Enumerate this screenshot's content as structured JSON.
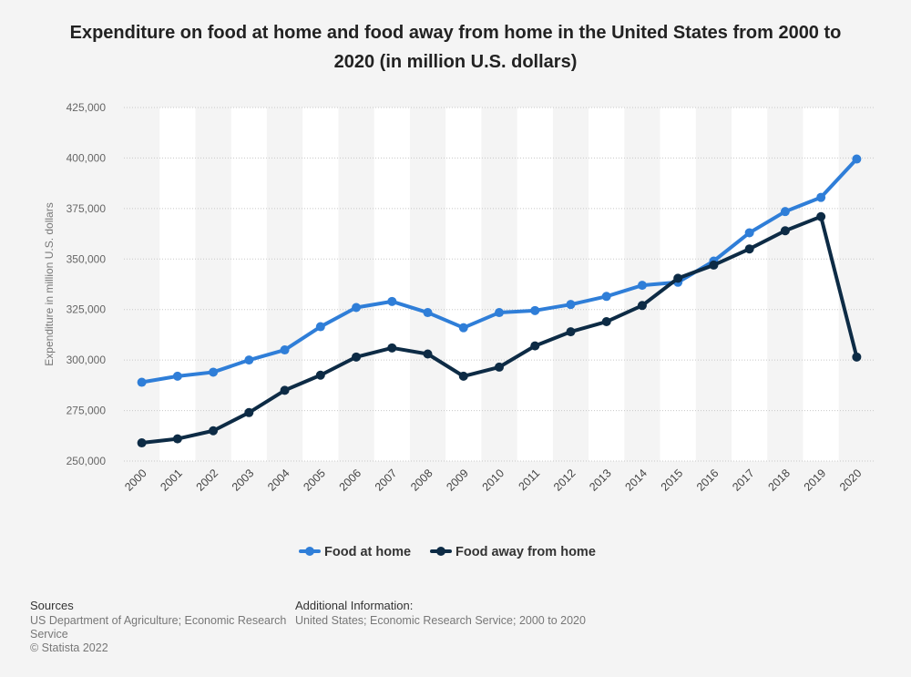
{
  "chart_data": {
    "type": "line",
    "title": "Expenditure on food at home and food away from home in the United States from 2000 to 2020 (in million U.S. dollars)",
    "ylabel": "Expenditure in million U.S. dollars",
    "xlabel": "",
    "ylim": [
      250000,
      425000
    ],
    "yticks": [
      250000,
      275000,
      300000,
      325000,
      350000,
      375000,
      400000,
      425000
    ],
    "ytick_labels": [
      "250,000",
      "275,000",
      "300,000",
      "325,000",
      "350,000",
      "375,000",
      "400,000",
      "425,000"
    ],
    "categories": [
      "2000",
      "2001",
      "2002",
      "2003",
      "2004",
      "2005",
      "2006",
      "2007",
      "2008",
      "2009",
      "2010",
      "2011",
      "2012",
      "2013",
      "2014",
      "2015",
      "2016",
      "2017",
      "2018",
      "2019",
      "2020"
    ],
    "grid": true,
    "legend_position": "bottom",
    "series": [
      {
        "name": "Food at home",
        "color": "#2f7ed8",
        "values": [
          289000,
          292000,
          294000,
          300000,
          305000,
          316500,
          326000,
          329000,
          323500,
          316000,
          323500,
          324500,
          327500,
          331500,
          337000,
          338500,
          349000,
          363000,
          373500,
          380500,
          399500
        ]
      },
      {
        "name": "Food away from home",
        "color": "#0d2b45",
        "values": [
          259000,
          261000,
          265000,
          274000,
          285000,
          292500,
          301500,
          306000,
          303000,
          292000,
          296500,
          307000,
          314000,
          319000,
          327000,
          340500,
          347000,
          355000,
          364000,
          371000,
          301500
        ]
      }
    ]
  },
  "footer": {
    "sources_title": "Sources",
    "sources_line1": "US Department of Agriculture; Economic Research",
    "sources_line2": "Service",
    "copyright": "© Statista 2022",
    "additional_title": "Additional Information:",
    "additional_text": "United States; Economic Research Service; 2000 to 2020"
  }
}
